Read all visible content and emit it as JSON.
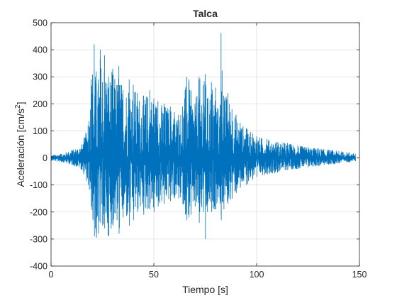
{
  "chart_data": {
    "type": "line",
    "title": "Talca",
    "xlabel": "Tiempo [s]",
    "ylabel": "Aceleración [cm/s",
    "ylabel_sup": "2",
    "ylabel_end": "]",
    "xlim": [
      0,
      150
    ],
    "ylim": [
      -400,
      500
    ],
    "x_ticks": [
      0,
      50,
      100,
      150
    ],
    "y_ticks": [
      -400,
      -300,
      -200,
      -100,
      0,
      100,
      200,
      300,
      400,
      500
    ],
    "x_tick_labels": [
      "0",
      "50",
      "100",
      "150"
    ],
    "y_tick_labels": [
      "-400",
      "-300",
      "-200",
      "-100",
      "0",
      "100",
      "200",
      "300",
      "400",
      "500"
    ],
    "grid": true,
    "line_color": "#0072BD",
    "series": [
      {
        "x": [
          0,
          5,
          10,
          15,
          18,
          19.5,
          21,
          21.5,
          22,
          23,
          24,
          25,
          26,
          28,
          30,
          32,
          33,
          35,
          38,
          40,
          42,
          45,
          48,
          50,
          52,
          55,
          58,
          60,
          62,
          64,
          66,
          67,
          68,
          70,
          72,
          74,
          75,
          76,
          78,
          80,
          82,
          82.7,
          84,
          86,
          88,
          90,
          92,
          95,
          98,
          100,
          105,
          110,
          115,
          120,
          125,
          130,
          135,
          140,
          145,
          148
        ],
        "upper": [
          10,
          15,
          28,
          50,
          120,
          290,
          420,
          300,
          320,
          290,
          400,
          280,
          380,
          300,
          330,
          270,
          340,
          250,
          290,
          270,
          240,
          230,
          250,
          220,
          210,
          200,
          190,
          170,
          160,
          190,
          300,
          290,
          250,
          200,
          300,
          270,
          310,
          220,
          280,
          260,
          150,
          462,
          230,
          240,
          180,
          160,
          130,
          110,
          90,
          80,
          70,
          60,
          55,
          45,
          40,
          35,
          30,
          25,
          20,
          15
        ],
        "lower": [
          -10,
          -15,
          -25,
          -45,
          -100,
          -180,
          -290,
          -260,
          -295,
          -280,
          -240,
          -250,
          -260,
          -290,
          -250,
          -230,
          -280,
          -220,
          -250,
          -230,
          -200,
          -210,
          -190,
          -200,
          -180,
          -170,
          -160,
          -150,
          -150,
          -170,
          -230,
          -220,
          -210,
          -180,
          -240,
          -200,
          -300,
          -200,
          -200,
          -190,
          -150,
          -230,
          -190,
          -170,
          -150,
          -130,
          -110,
          -100,
          -80,
          -70,
          -60,
          -55,
          -45,
          -40,
          -35,
          -30,
          -25,
          -20,
          -15,
          -12
        ]
      }
    ]
  }
}
